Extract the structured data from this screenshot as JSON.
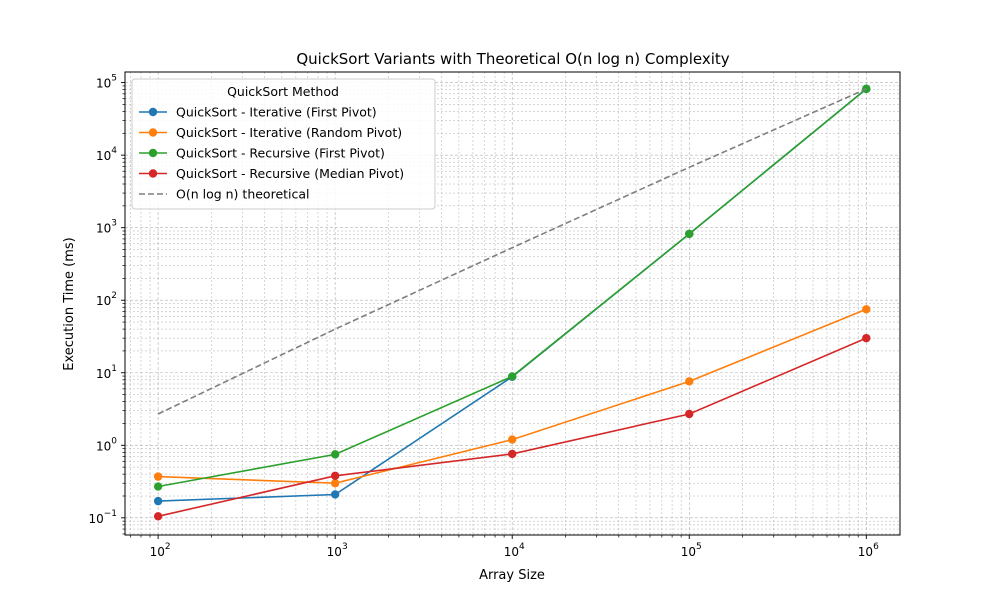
{
  "chart_data": {
    "type": "line",
    "title": "QuickSort Variants with Theoretical O(n log n) Complexity",
    "xlabel": "Array Size",
    "ylabel": "Execution Time (ms)",
    "xscale": "log",
    "yscale": "log",
    "xlim": [
      65,
      1550000
    ],
    "ylim": [
      0.058,
      140000
    ],
    "grid": true,
    "x": [
      100,
      1000,
      10000,
      100000,
      1000000
    ],
    "x_ticks": [
      {
        "value": 100,
        "base": "10",
        "exp": "2"
      },
      {
        "value": 1000,
        "base": "10",
        "exp": "3"
      },
      {
        "value": 10000,
        "base": "10",
        "exp": "4"
      },
      {
        "value": 100000,
        "base": "10",
        "exp": "5"
      },
      {
        "value": 1000000,
        "base": "10",
        "exp": "6"
      }
    ],
    "y_ticks": [
      {
        "value": 0.1,
        "base": "10",
        "exp": "−1"
      },
      {
        "value": 1,
        "base": "10",
        "exp": "0"
      },
      {
        "value": 10,
        "base": "10",
        "exp": "1"
      },
      {
        "value": 100,
        "base": "10",
        "exp": "2"
      },
      {
        "value": 1000,
        "base": "10",
        "exp": "3"
      },
      {
        "value": 10000,
        "base": "10",
        "exp": "4"
      },
      {
        "value": 100000,
        "base": "10",
        "exp": "5"
      }
    ],
    "legend": {
      "title": "QuickSort Method",
      "position": "upper-left"
    },
    "series": [
      {
        "name": "QuickSort - Iterative (First Pivot)",
        "color": "#1f77b4",
        "style": "solid",
        "marker": true,
        "values": [
          0.17,
          0.21,
          8.8,
          820,
          82000
        ]
      },
      {
        "name": "QuickSort - Iterative (Random Pivot)",
        "color": "#ff7f0e",
        "style": "solid",
        "marker": true,
        "values": [
          0.37,
          0.3,
          1.2,
          7.6,
          75
        ]
      },
      {
        "name": "QuickSort - Recursive (First Pivot)",
        "color": "#2ca02c",
        "style": "solid",
        "marker": true,
        "values": [
          0.27,
          0.75,
          8.9,
          820,
          82000
        ]
      },
      {
        "name": "QuickSort - Recursive (Median Pivot)",
        "color": "#d62728",
        "style": "solid",
        "marker": true,
        "values": [
          0.105,
          0.38,
          0.76,
          2.7,
          30
        ]
      },
      {
        "name": "O(n log n) theoretical",
        "color": "#7f7f7f",
        "style": "dashed",
        "marker": false,
        "values": [
          2.7,
          40,
          530,
          6800,
          82000
        ]
      }
    ]
  }
}
